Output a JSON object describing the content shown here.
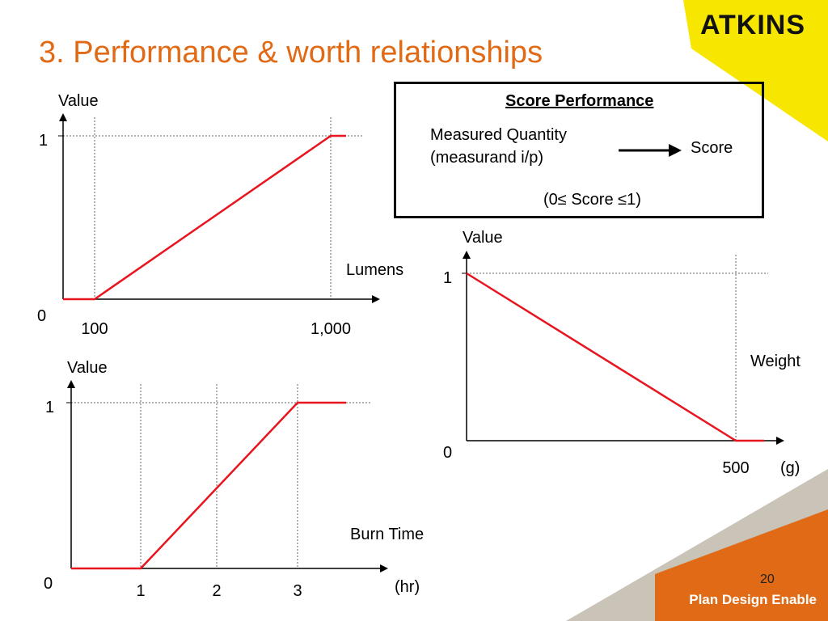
{
  "slide": {
    "title": "3. Performance & worth relationships",
    "logo_text": "ATKINS",
    "tagline": "Plan Design Enable",
    "page_number": "20",
    "accent_color": "#e06a16",
    "brand_yellow": "#f7e600",
    "brand_orange": "#e06a16"
  },
  "score_box": {
    "title": "Score Performance",
    "input_line1": "Measured Quantity",
    "input_line2": "(measurand i/p)",
    "output": "Score",
    "range": "(0≤ Score ≤1)"
  },
  "chart_data": [
    {
      "type": "line",
      "title": "",
      "xlabel": "Lumens",
      "ylabel": "Value",
      "y_ticks": [
        "0",
        "1"
      ],
      "x_ticks": [
        "100",
        "1,000"
      ],
      "series": [
        {
          "x": [
            0,
            100,
            1000,
            1060
          ],
          "y": [
            0,
            0,
            1,
            1
          ]
        }
      ],
      "xlim": [
        0,
        1200
      ],
      "ylim": [
        0,
        1
      ],
      "reference_lines": {
        "x": [
          100,
          1000
        ],
        "y": [
          1
        ]
      },
      "line_color": "#e8141e"
    },
    {
      "type": "line",
      "title": "",
      "xlabel": "Weight",
      "ylabel": "Value",
      "unit": "(g)",
      "y_ticks": [
        "0",
        "1"
      ],
      "x_ticks": [
        "500"
      ],
      "series": [
        {
          "x": [
            0,
            500,
            560
          ],
          "y": [
            1,
            0,
            0
          ]
        }
      ],
      "xlim": [
        0,
        600
      ],
      "ylim": [
        0,
        1
      ],
      "reference_lines": {
        "x": [
          500
        ],
        "y": [
          1
        ]
      },
      "line_color": "#e8141e"
    },
    {
      "type": "line",
      "title": "",
      "xlabel": "Burn Time",
      "ylabel": "Value",
      "unit": "(hr)",
      "y_ticks": [
        "0",
        "1"
      ],
      "x_ticks": [
        "1",
        "2",
        "3"
      ],
      "series": [
        {
          "x": [
            0,
            1,
            3,
            3.6
          ],
          "y": [
            0,
            0,
            1,
            1
          ]
        }
      ],
      "xlim": [
        0,
        4
      ],
      "ylim": [
        0,
        1
      ],
      "reference_lines": {
        "x": [
          1,
          2,
          3
        ],
        "y": [
          1
        ]
      },
      "line_color": "#e8141e"
    }
  ]
}
